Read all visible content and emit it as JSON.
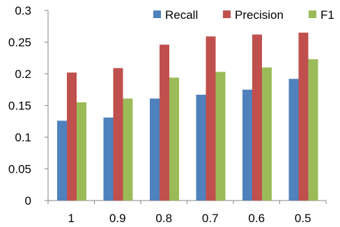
{
  "chart_data": {
    "type": "bar",
    "categories": [
      "1",
      "0.9",
      "0.8",
      "0.7",
      "0.6",
      "0.5"
    ],
    "series": [
      {
        "name": "Recall",
        "color": "#4f81bd",
        "values": [
          0.126,
          0.131,
          0.161,
          0.167,
          0.175,
          0.192
        ]
      },
      {
        "name": "Precision",
        "color": "#c0504d",
        "values": [
          0.202,
          0.209,
          0.246,
          0.259,
          0.262,
          0.265
        ]
      },
      {
        "name": "F1",
        "color": "#9bbb59",
        "values": [
          0.155,
          0.161,
          0.194,
          0.203,
          0.21,
          0.223
        ]
      }
    ],
    "yticks": [
      "0",
      "0.05",
      "0.1",
      "0.15",
      "0.2",
      "0.25",
      "0.3"
    ],
    "ylim": [
      0,
      0.3
    ],
    "grid": false,
    "legend": "top-right",
    "title": "",
    "xlabel": "",
    "ylabel": ""
  }
}
